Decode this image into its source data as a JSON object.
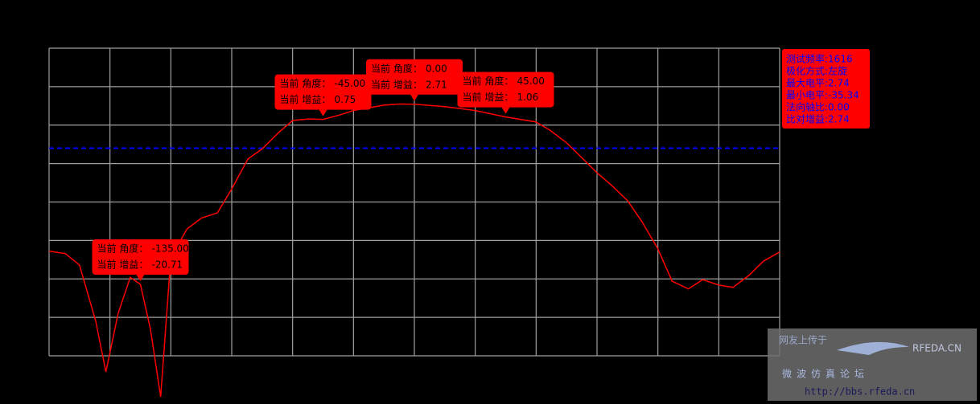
{
  "chart_data": {
    "type": "line",
    "x": [
      -180,
      -172,
      -165,
      -157,
      -152,
      -146,
      -140,
      -135,
      -130,
      -125,
      -120,
      -112,
      -105,
      -97,
      -90,
      -82,
      -75,
      -67,
      -60,
      -52,
      -45,
      -37,
      -30,
      -15,
      -7,
      0,
      15,
      30,
      45,
      60,
      67,
      75,
      82,
      90,
      97,
      105,
      112,
      120,
      127,
      135,
      142,
      150,
      157,
      165,
      172,
      180
    ],
    "series": [
      {
        "color": "#ff0000",
        "values": [
          -16.4,
          -16.7,
          -18.2,
          -25.5,
          -32.1,
          -24.5,
          -19.8,
          -20.71,
          -26.6,
          -35.34,
          -17.2,
          -13.5,
          -12.1,
          -11.4,
          -8.3,
          -4.4,
          -3.1,
          -1.0,
          0.6,
          0.8,
          0.75,
          1.3,
          1.9,
          2.6,
          2.74,
          2.71,
          2.4,
          1.9,
          1.06,
          0.4,
          -0.7,
          -2.3,
          -4.1,
          -6.2,
          -7.8,
          -9.8,
          -12.5,
          -16.1,
          -20.3,
          -21.3,
          -20.1,
          -20.8,
          -21.1,
          -19.5,
          -17.7,
          -16.5
        ]
      }
    ],
    "xlim": [
      -180,
      180
    ],
    "xticks": [
      -180,
      -150,
      -120,
      -90,
      -60,
      -30,
      0,
      30,
      60,
      90,
      120,
      150,
      180
    ],
    "ylim": [
      -30,
      10
    ],
    "yticks": [
      -30,
      -25,
      -20,
      -15,
      -10,
      -5,
      0,
      5,
      10
    ],
    "grid": true,
    "grid_color": "#a0a0a0",
    "background": "#000000",
    "ref_line": {
      "value": -3,
      "color": "#0000ff"
    },
    "angle_caption": "当前 角度：",
    "gain_caption": "当前 增益：",
    "annotations": [
      {
        "x": -135,
        "y": -20.71,
        "x_label": "-135.00",
        "y_label": "-20.71"
      },
      {
        "x": -45,
        "y": 0.75,
        "x_label": "-45.00",
        "y_label": "0.75"
      },
      {
        "x": 0,
        "y": 2.71,
        "x_label": "0.00",
        "y_label": "2.71"
      },
      {
        "x": 45,
        "y": 1.06,
        "x_label": "45.00",
        "y_label": "1.06"
      }
    ],
    "info": [
      "测试频率:1616",
      "极化方式:左旋",
      "最大电平:2.74",
      "最小电平:-35.34",
      "法向轴比:0.00",
      "比对增益:2.74"
    ],
    "watermark": {
      "uploader": "网友上传于",
      "site": "RFEDA.CN",
      "forum": "微波仿真论坛",
      "url": "http://bbs.rfeda.cn"
    }
  }
}
